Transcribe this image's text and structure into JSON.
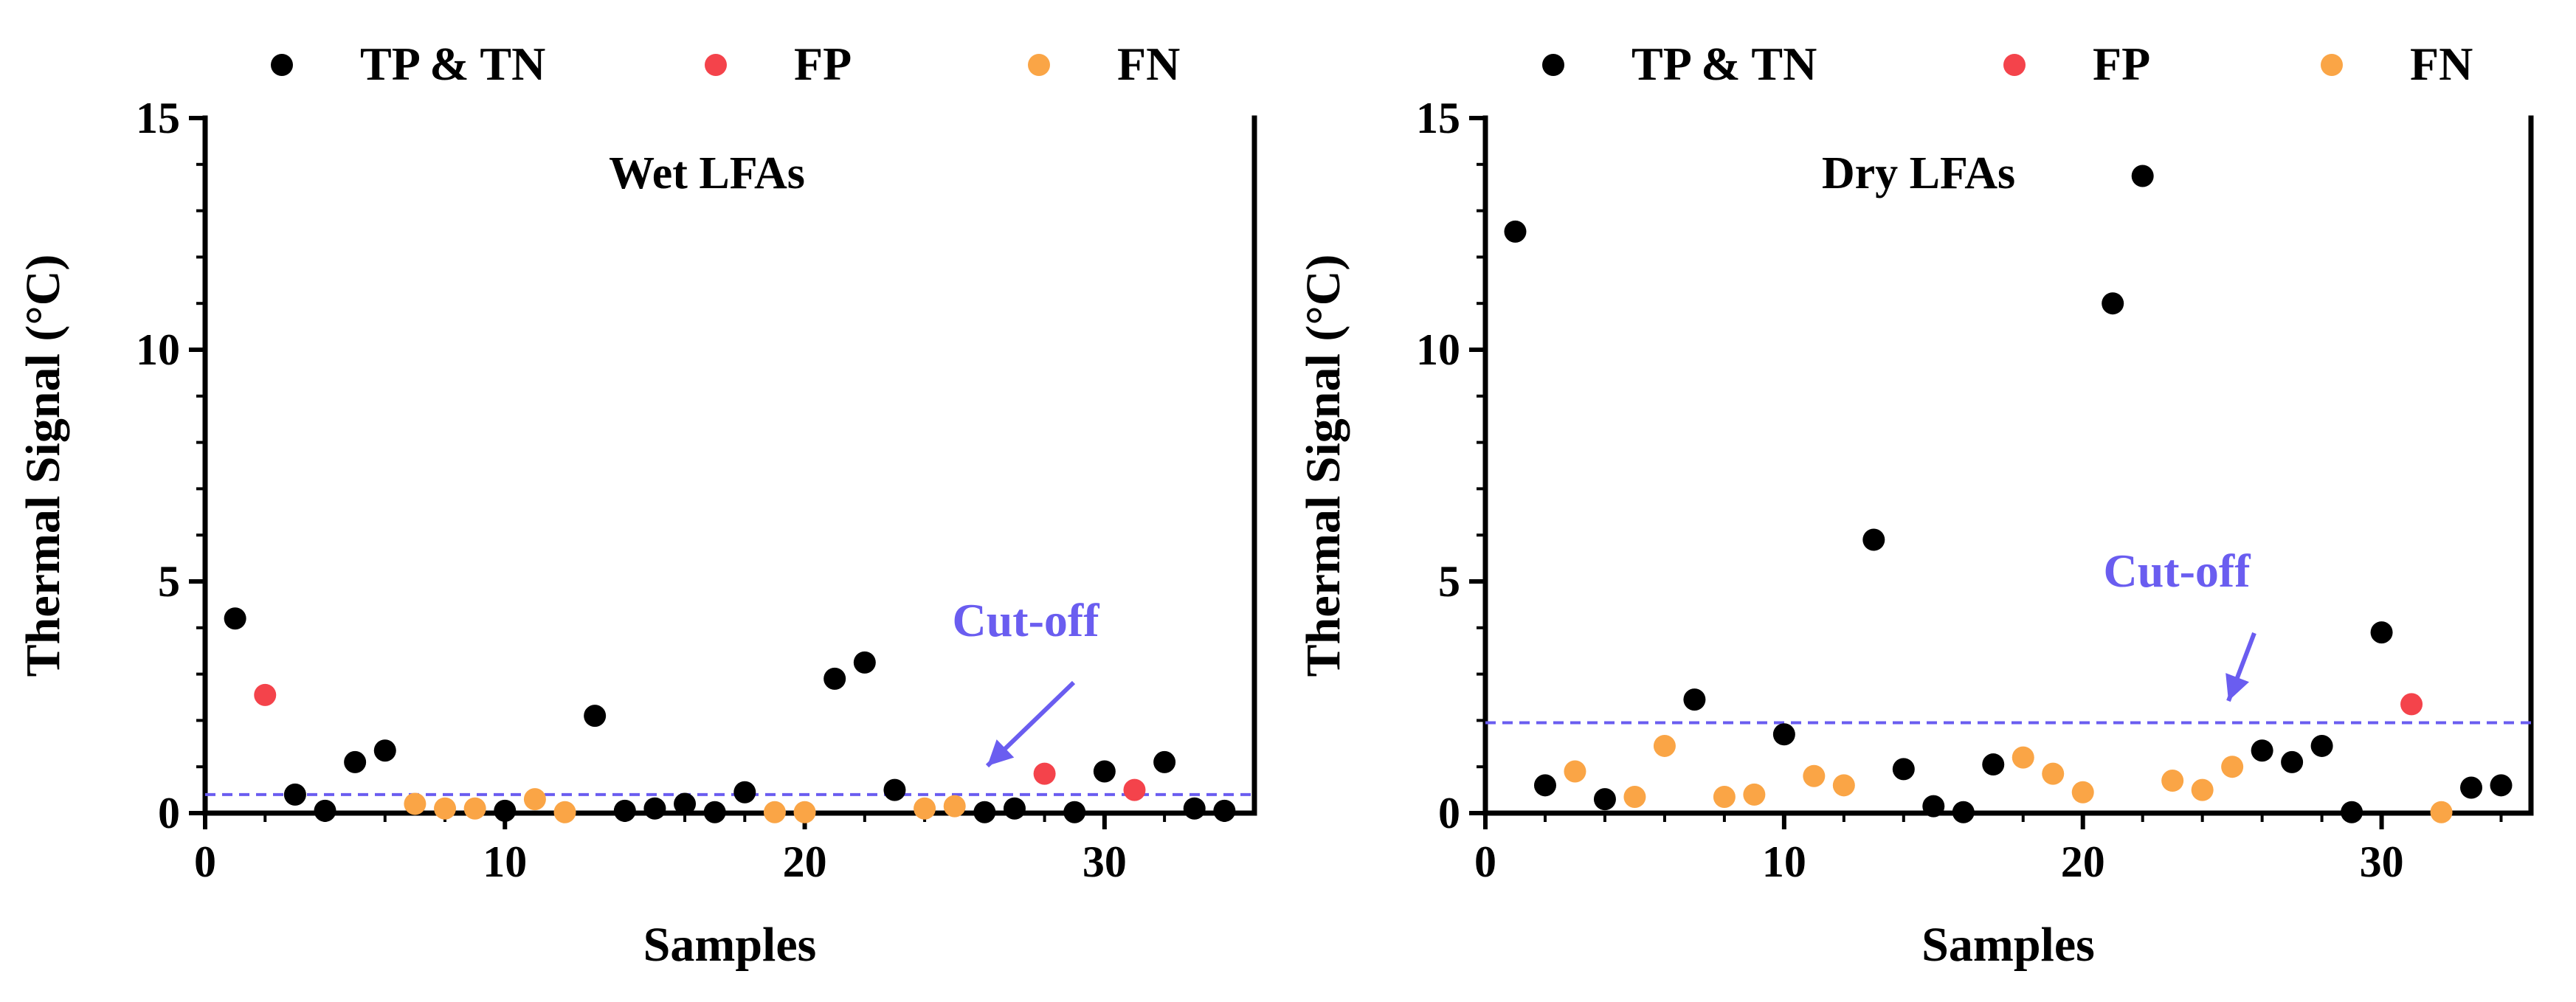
{
  "colors": {
    "tp_tn": "#000000",
    "fp": "#f4434b",
    "fn": "#faa546",
    "cutoff": "#6a5df0",
    "axis": "#000000"
  },
  "legend_labels": [
    "TP & TN",
    "FP",
    "FN"
  ],
  "chart_data": [
    {
      "type": "scatter",
      "title": "Wet LFAs",
      "xlabel": "Samples",
      "ylabel": "Thermal Signal (°C)",
      "xlim": [
        0,
        35
      ],
      "ylim": [
        0,
        15
      ],
      "xticks": [
        0,
        10,
        20,
        30
      ],
      "yticks": [
        0,
        5,
        10,
        15
      ],
      "cutoff": {
        "label": "Cut-off",
        "value": 0.4
      },
      "series": [
        {
          "name": "TP & TN",
          "key": "tp_tn",
          "x": [
            1,
            3,
            4,
            5,
            6,
            10,
            13,
            14,
            15,
            16,
            17,
            18,
            21,
            22,
            23,
            26,
            27,
            29,
            30,
            32,
            33,
            34
          ],
          "y": [
            4.2,
            0.4,
            0.05,
            1.1,
            1.35,
            0.05,
            2.1,
            0.05,
            0.1,
            0.2,
            0.02,
            0.45,
            2.9,
            3.25,
            0.5,
            0.02,
            0.1,
            0.02,
            0.9,
            1.1,
            0.1,
            0.05
          ]
        },
        {
          "name": "FP",
          "key": "fp",
          "x": [
            2,
            28,
            31
          ],
          "y": [
            2.55,
            0.85,
            0.5
          ]
        },
        {
          "name": "FN",
          "key": "fn",
          "x": [
            7,
            8,
            9,
            11,
            12,
            19,
            20,
            24,
            25
          ],
          "y": [
            0.2,
            0.1,
            0.1,
            0.3,
            0.02,
            0.02,
            0.02,
            0.1,
            0.15
          ]
        }
      ]
    },
    {
      "type": "scatter",
      "title": "Dry LFAs",
      "xlabel": "Samples",
      "ylabel": "Thermal Signal (°C)",
      "xlim": [
        0,
        35
      ],
      "ylim": [
        0,
        15
      ],
      "xticks": [
        0,
        10,
        20,
        30
      ],
      "yticks": [
        0,
        5,
        10,
        15
      ],
      "cutoff": {
        "label": "Cut-off",
        "value": 1.95
      },
      "series": [
        {
          "name": "TP & TN",
          "key": "tp_tn",
          "x": [
            1,
            2,
            4,
            7,
            10,
            13,
            14,
            15,
            16,
            17,
            21,
            22,
            26,
            27,
            28,
            29,
            30,
            33,
            34
          ],
          "y": [
            12.55,
            0.6,
            0.3,
            2.45,
            1.7,
            5.9,
            0.95,
            0.15,
            0.02,
            1.05,
            11.0,
            13.75,
            1.35,
            1.1,
            1.45,
            0.02,
            3.9,
            0.55,
            0.6
          ]
        },
        {
          "name": "FP",
          "key": "fp",
          "x": [
            31
          ],
          "y": [
            2.35
          ]
        },
        {
          "name": "FN",
          "key": "fn",
          "x": [
            3,
            5,
            6,
            8,
            9,
            11,
            12,
            18,
            19,
            20,
            23,
            24,
            25,
            32
          ],
          "y": [
            0.9,
            0.35,
            1.45,
            0.35,
            0.4,
            0.8,
            0.6,
            1.2,
            0.85,
            0.45,
            0.7,
            0.5,
            1.0,
            0.02
          ]
        }
      ]
    }
  ]
}
